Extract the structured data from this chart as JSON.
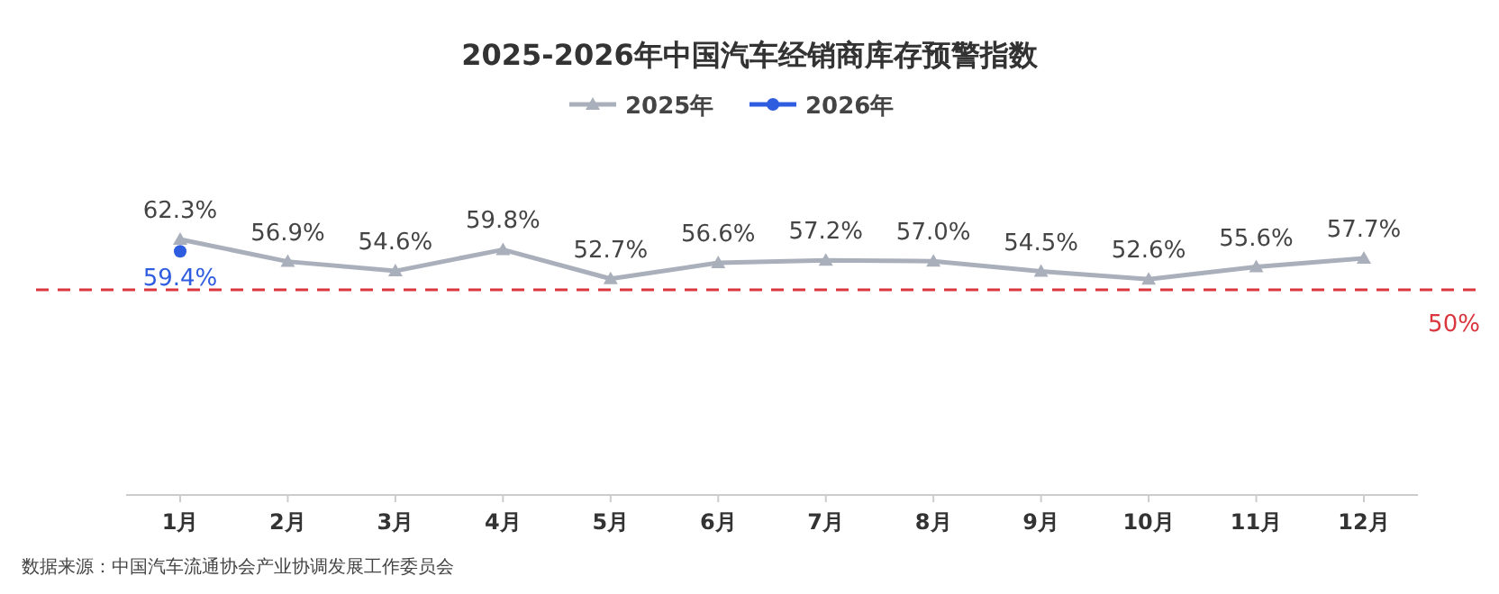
{
  "chart_data": {
    "type": "line",
    "title": "2025-2026年中国汽车经销商库存预警指数",
    "categories": [
      "1月",
      "2月",
      "3月",
      "4月",
      "5月",
      "6月",
      "7月",
      "8月",
      "9月",
      "10月",
      "11月",
      "12月"
    ],
    "tick_labels": "x",
    "legend": "top",
    "line_style": "solid",
    "series": [
      {
        "name": "2025年",
        "color": "#aab0bb",
        "marker": "triangle",
        "values": [
          62.3,
          56.9,
          54.6,
          59.8,
          52.7,
          56.6,
          57.2,
          57.0,
          54.5,
          52.6,
          55.6,
          57.7
        ],
        "value_labels": [
          "62.3%",
          "56.9%",
          "54.6%",
          "59.8%",
          "52.7%",
          "56.6%",
          "57.2%",
          "57.0%",
          "54.5%",
          "52.6%",
          "55.6%",
          "57.7%"
        ]
      },
      {
        "name": "2026年",
        "color": "#2f5de0",
        "marker": "circle",
        "values": [
          59.4,
          null,
          null,
          null,
          null,
          null,
          null,
          null,
          null,
          null,
          null,
          null
        ],
        "value_labels": [
          "59.4%",
          null,
          null,
          null,
          null,
          null,
          null,
          null,
          null,
          null,
          null,
          null
        ]
      }
    ],
    "ref_lines": [
      {
        "axis": "y",
        "value": 50,
        "label": "50%",
        "color": "#d9363e",
        "line_style": "dashed"
      }
    ],
    "annotations": [
      "数据来源：中国汽车流通协会产业协调发展工作委员会"
    ]
  }
}
